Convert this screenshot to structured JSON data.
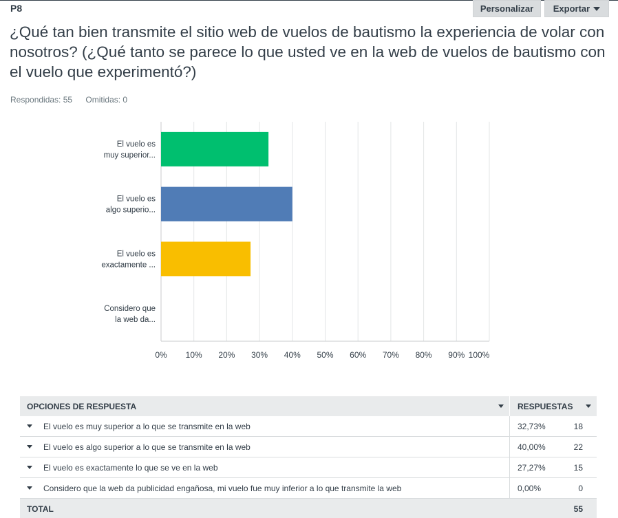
{
  "header": {
    "question_number": "P8",
    "customize_label": "Personalizar",
    "export_label": "Exportar",
    "title": "¿Qué tan bien transmite el sitio web de vuelos de bautismo la experiencia de volar con nosotros? (¿Qué tanto se parece lo que usted ve en la web de vuelos de bautismo con el vuelo que experimentó?)",
    "answered": "Respondidas: 55",
    "skipped": "Omitidas: 0"
  },
  "chart_data": {
    "type": "bar",
    "orientation": "horizontal",
    "categories": [
      [
        "El vuelo es",
        "muy superior..."
      ],
      [
        "El vuelo es",
        "algo superio..."
      ],
      [
        "El vuelo es",
        "exactamente ..."
      ],
      [
        "Considero que",
        "la web da..."
      ]
    ],
    "values": [
      32.73,
      40.0,
      27.27,
      0.0
    ],
    "colors": [
      "#00bf6f",
      "#507cb6",
      "#f9be00",
      "#6bc8cd"
    ],
    "xlim": [
      0,
      100
    ],
    "xticks": [
      "0%",
      "10%",
      "20%",
      "30%",
      "40%",
      "50%",
      "60%",
      "70%",
      "80%",
      "90%",
      "100%"
    ],
    "grid": true
  },
  "table": {
    "col_options": "OPCIONES DE RESPUESTA",
    "col_responses": "RESPUESTAS",
    "rows": [
      {
        "label": "El vuelo es muy superior a lo que se transmite en la web",
        "pct": "32,73%",
        "count": "18"
      },
      {
        "label": "El vuelo es algo superior a lo que se transmite en la web",
        "pct": "40,00%",
        "count": "22"
      },
      {
        "label": "El vuelo es exactamente lo que se ve en la web",
        "pct": "27,27%",
        "count": "15"
      },
      {
        "label": "Considero que la web da publicidad engañosa, mi vuelo fue muy inferior a lo que transmite la web",
        "pct": "0,00%",
        "count": "0"
      }
    ],
    "total_label": "TOTAL",
    "total_count": "55"
  }
}
